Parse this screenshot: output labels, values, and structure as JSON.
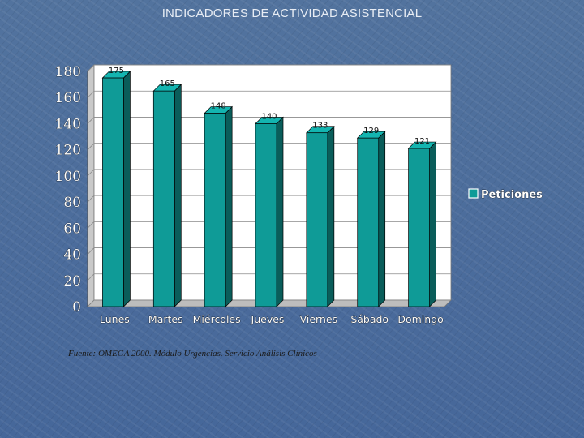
{
  "slide": {
    "title": "INDICADORES DE ACTIVIDAD ASISTENCIAL",
    "source_note": "Fuente: OMEGA 2000. Módulo Urgencias. Servicio Análisis Clínicos"
  },
  "chart_data": {
    "type": "bar",
    "categories": [
      "Lunes",
      "Martes",
      "Miércoles",
      "Jueves",
      "Viernes",
      "Sábado",
      "Domingo"
    ],
    "series": [
      {
        "name": "Peticiones",
        "values": [
          175,
          165,
          148,
          140,
          133,
          129,
          121
        ],
        "color": "#0f9b97"
      }
    ],
    "data_labels": [
      "175",
      "165",
      "148",
      "140",
      "133",
      "129",
      "121"
    ],
    "yticks": [
      "0",
      "20",
      "40",
      "60",
      "80",
      "100",
      "120",
      "140",
      "160",
      "180"
    ],
    "ylim": [
      0,
      180
    ],
    "grid": true,
    "legend_position": "right",
    "three_d": true,
    "colors": {
      "plot_back": "#ffffff",
      "bar_front": "#0f9b97",
      "bar_side": "#0a5d5a",
      "bar_top": "#13b5b0",
      "gridline": "#8a8a8a"
    }
  }
}
